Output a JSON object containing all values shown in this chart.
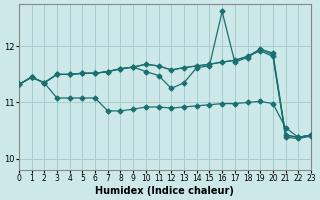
{
  "xlabel": "Humidex (Indice chaleur)",
  "bg_color": "#cce8e8",
  "grid_color": "#aacccc",
  "line_color": "#1a7070",
  "xlim": [
    0,
    23
  ],
  "ylim": [
    9.8,
    12.75
  ],
  "yticks": [
    10,
    11,
    12
  ],
  "xticks": [
    0,
    1,
    2,
    3,
    4,
    5,
    6,
    7,
    8,
    9,
    10,
    11,
    12,
    13,
    14,
    15,
    16,
    17,
    18,
    19,
    20,
    21,
    22,
    23
  ],
  "s1_y": [
    11.32,
    11.45,
    11.35,
    11.5,
    11.5,
    11.52,
    11.52,
    11.55,
    11.6,
    11.63,
    11.68,
    11.65,
    11.58,
    11.62,
    11.65,
    11.68,
    11.72,
    11.75,
    11.82,
    11.92,
    11.82,
    10.38,
    10.36,
    10.4
  ],
  "s2_y": [
    11.32,
    11.45,
    11.35,
    11.5,
    11.5,
    11.52,
    11.52,
    11.55,
    11.6,
    11.63,
    11.68,
    11.65,
    11.58,
    11.62,
    11.65,
    11.68,
    11.72,
    11.75,
    11.82,
    11.95,
    11.85,
    10.42,
    10.38,
    10.42
  ],
  "s3_y": [
    11.32,
    11.45,
    11.35,
    11.5,
    11.5,
    11.52,
    11.52,
    11.55,
    11.6,
    11.63,
    11.55,
    11.48,
    11.25,
    11.35,
    11.62,
    11.65,
    12.62,
    11.72,
    11.8,
    11.95,
    11.88,
    10.42,
    10.38,
    10.42
  ],
  "s4_y": [
    11.32,
    11.45,
    11.35,
    11.08,
    11.08,
    11.08,
    11.08,
    10.85,
    10.85,
    10.88,
    10.92,
    10.92,
    10.9,
    10.92,
    10.94,
    10.96,
    10.98,
    10.98,
    11.0,
    11.02,
    10.98,
    10.55,
    10.38,
    10.42
  ]
}
